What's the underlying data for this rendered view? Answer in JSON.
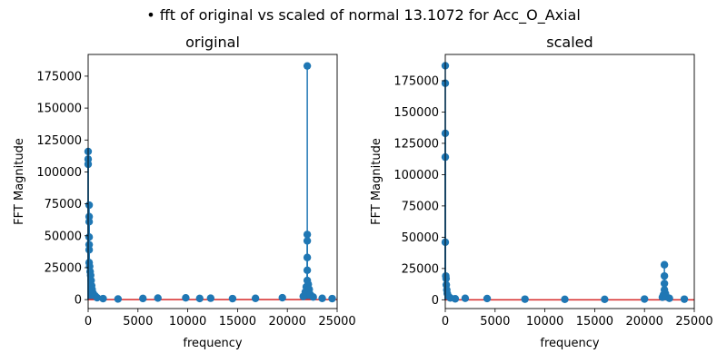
{
  "suptitle": "• fft of original vs scaled of normal 13.1072 for Acc_O_Axial",
  "chart_data": [
    {
      "type": "stem",
      "title": "original",
      "xlabel": "frequency",
      "ylabel": "FFT Magnitude",
      "xlim": [
        0,
        25000
      ],
      "ylim": [
        -7000,
        192000
      ],
      "xticks": [
        0,
        5000,
        10000,
        15000,
        20000,
        25000
      ],
      "yticks": [
        0,
        25000,
        50000,
        75000,
        100000,
        125000,
        150000,
        175000
      ],
      "marker_color": "#1f77b4",
      "baseline_color": "#d62728",
      "points": [
        [
          0,
          116000
        ],
        [
          0,
          110000
        ],
        [
          0,
          106000
        ],
        [
          100,
          74000
        ],
        [
          100,
          65000
        ],
        [
          100,
          61000
        ],
        [
          100,
          49000
        ],
        [
          100,
          43000
        ],
        [
          100,
          39000
        ],
        [
          100,
          29000
        ],
        [
          150,
          26000
        ],
        [
          200,
          22000
        ],
        [
          250,
          19000
        ],
        [
          300,
          15000
        ],
        [
          350,
          11000
        ],
        [
          400,
          8000
        ],
        [
          500,
          5000
        ],
        [
          700,
          3000
        ],
        [
          900,
          1500
        ],
        [
          1500,
          800
        ],
        [
          3000,
          500
        ],
        [
          5500,
          900
        ],
        [
          7000,
          1200
        ],
        [
          9800,
          1400
        ],
        [
          11200,
          900
        ],
        [
          12300,
          1100
        ],
        [
          14500,
          800
        ],
        [
          16800,
          1000
        ],
        [
          19500,
          1500
        ],
        [
          21600,
          2500
        ],
        [
          21800,
          6000
        ],
        [
          21900,
          10000
        ],
        [
          22000,
          183000
        ],
        [
          22000,
          51000
        ],
        [
          22000,
          46000
        ],
        [
          22000,
          33000
        ],
        [
          22000,
          23000
        ],
        [
          22000,
          15000
        ],
        [
          22100,
          12000
        ],
        [
          22200,
          8000
        ],
        [
          22300,
          4000
        ],
        [
          22600,
          2000
        ],
        [
          23500,
          1000
        ],
        [
          24500,
          800
        ]
      ]
    },
    {
      "type": "stem",
      "title": "scaled",
      "xlabel": "frequency",
      "ylabel": "FFT Magnitude",
      "xlim": [
        0,
        25000
      ],
      "ylim": [
        -7000,
        196000
      ],
      "xticks": [
        0,
        5000,
        10000,
        15000,
        20000,
        25000
      ],
      "yticks": [
        0,
        25000,
        50000,
        75000,
        100000,
        125000,
        150000,
        175000
      ],
      "marker_color": "#1f77b4",
      "baseline_color": "#d62728",
      "points": [
        [
          0,
          187000
        ],
        [
          0,
          173000
        ],
        [
          0,
          133000
        ],
        [
          0,
          114000
        ],
        [
          0,
          46000
        ],
        [
          50,
          19000
        ],
        [
          80,
          17000
        ],
        [
          100,
          12000
        ],
        [
          150,
          8000
        ],
        [
          200,
          5000
        ],
        [
          300,
          3000
        ],
        [
          500,
          1500
        ],
        [
          1000,
          800
        ],
        [
          2000,
          1200
        ],
        [
          4200,
          1000
        ],
        [
          8000,
          500
        ],
        [
          12000,
          400
        ],
        [
          16000,
          400
        ],
        [
          20000,
          600
        ],
        [
          21800,
          2000
        ],
        [
          21900,
          4000
        ],
        [
          22000,
          28000
        ],
        [
          22000,
          19000
        ],
        [
          22000,
          13000
        ],
        [
          22000,
          8000
        ],
        [
          22100,
          5000
        ],
        [
          22200,
          2500
        ],
        [
          22500,
          1200
        ],
        [
          24000,
          500
        ]
      ]
    }
  ]
}
